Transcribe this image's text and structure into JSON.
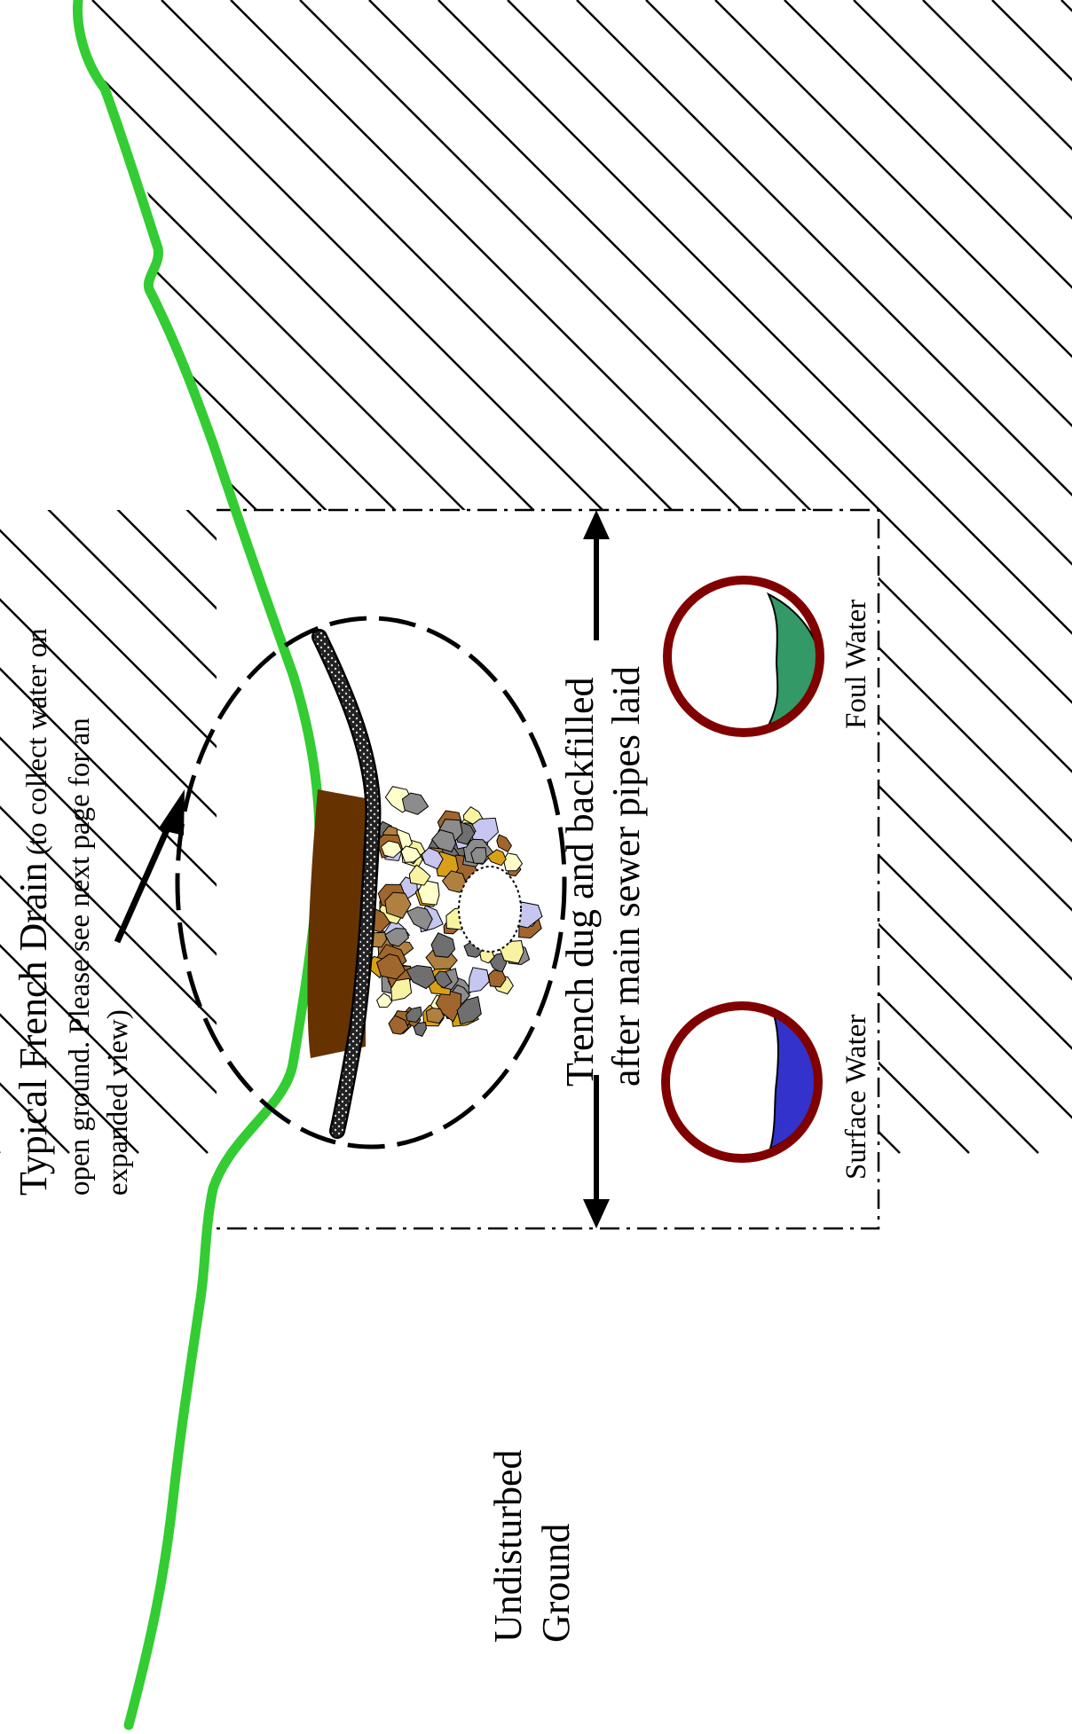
{
  "french_drain": {
    "title": "Typical French Drain",
    "note_line1": " (to collect water on",
    "note_line2": "open ground. Please see next page for an",
    "note_line3": "expanded view)"
  },
  "trench": {
    "label_line1": "Trench dug and backfilled",
    "label_line2": "after main sewer pipes laid"
  },
  "pipes": {
    "surface_water_label": "Surface Water",
    "foul_water_label": "Foul Water",
    "surface_water_color": "#3333cc",
    "foul_water_color": "#339966",
    "pipe_wall_color": "#800000"
  },
  "ground": {
    "label_line1": "Undisturbed",
    "label_line2": "Ground",
    "surface_line_color": "#33cc33",
    "topsoil_color": "#663300"
  }
}
